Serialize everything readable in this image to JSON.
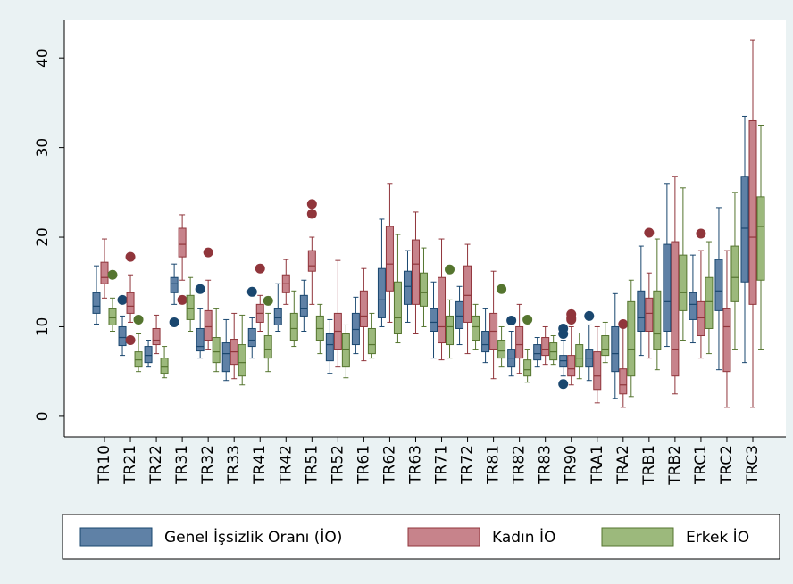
{
  "chart_data": {
    "type": "box",
    "categories": [
      "TR10",
      "TR21",
      "TR22",
      "TR31",
      "TR32",
      "TR33",
      "TR41",
      "TR42",
      "TR51",
      "TR52",
      "TR61",
      "TR62",
      "TR63",
      "TR71",
      "TR72",
      "TR81",
      "TR82",
      "TR83",
      "TR90",
      "TRA1",
      "TRA2",
      "TRB1",
      "TRB2",
      "TRC1",
      "TRC2",
      "TRC3"
    ],
    "ylim": [
      -2.3,
      44.3
    ],
    "yticks": [
      0,
      10,
      20,
      30,
      40
    ],
    "grid": false,
    "legend": "bottom",
    "series": [
      {
        "name": "Genel İşsizlik Oranı (İO)",
        "color": "#5f81a6",
        "edge": "#1a476f",
        "values": [
          [
            10.3,
            11.5,
            12.3,
            13.8,
            16.8
          ],
          [
            6.8,
            7.9,
            8.8,
            10,
            11.2
          ],
          [
            5.5,
            6,
            6.8,
            7.8,
            8.5
          ],
          [
            12.5,
            13.8,
            14.8,
            15.5,
            17
          ],
          [
            6.5,
            7.3,
            7.8,
            9.8,
            12
          ],
          [
            4,
            5,
            7,
            8.2,
            10.8
          ],
          [
            6.5,
            7.8,
            8.5,
            9.8,
            11
          ],
          [
            9.5,
            10.2,
            11,
            12,
            14.8
          ],
          [
            9.5,
            11.2,
            12,
            13.5,
            15.2
          ],
          [
            4.8,
            6.2,
            8,
            9.2,
            10.8
          ],
          [
            7,
            8,
            9.7,
            11.5,
            13.3
          ],
          [
            10,
            11,
            13,
            16.5,
            22
          ],
          [
            10.5,
            12.5,
            14.5,
            16.2,
            18.5
          ],
          [
            6.5,
            9.5,
            10.5,
            12,
            15
          ],
          [
            8,
            9.8,
            11.2,
            12.8,
            14.5
          ],
          [
            6,
            7.2,
            8,
            9.5,
            12
          ],
          [
            4.5,
            5.5,
            6.5,
            7.5,
            9.5
          ],
          [
            5.5,
            6.3,
            7,
            8,
            8.8
          ],
          [
            4.5,
            5.5,
            6.2,
            6.8,
            8.5
          ],
          [
            4,
            5.5,
            6.5,
            7.5,
            10.2
          ],
          [
            2,
            5,
            7,
            10,
            13.7
          ],
          [
            6.8,
            9.5,
            11,
            14,
            19
          ],
          [
            7.8,
            9.5,
            12.8,
            19.2,
            26
          ],
          [
            8.2,
            10.8,
            12.5,
            13.8,
            18
          ],
          [
            5.2,
            11.8,
            14,
            17.5,
            23.3
          ],
          [
            6,
            15,
            21,
            26.8,
            33.5
          ]
        ],
        "outliers": [
          [],
          [
            13
          ],
          [],
          [
            10.5
          ],
          [
            14.2
          ],
          [],
          [
            13.9
          ],
          [],
          [],
          [],
          [],
          [],
          [],
          [],
          [],
          [],
          [
            10.7
          ],
          [],
          [
            9.8,
            9.2,
            3.6
          ],
          [
            11.2
          ],
          [],
          [],
          [],
          [],
          [],
          []
        ]
      },
      {
        "name": "Kadın İO",
        "color": "#c7838b",
        "edge": "#90353b",
        "values": [
          [
            13.2,
            14.8,
            15.5,
            17.2,
            19.8
          ],
          [
            10.5,
            11.5,
            12.3,
            13.8,
            15.8
          ],
          [
            7,
            8,
            8.5,
            9.8,
            11.3
          ],
          [
            15.2,
            17.8,
            19.2,
            21,
            22.5
          ],
          [
            7.5,
            8.5,
            10,
            11.8,
            15.2
          ],
          [
            4.2,
            5.8,
            7.2,
            8.6,
            11.5
          ],
          [
            9.5,
            10.5,
            11.5,
            12.5,
            13.5
          ],
          [
            12.5,
            13.8,
            14.8,
            15.8,
            17.5
          ],
          [
            12.5,
            16.2,
            16.8,
            18.5,
            20
          ],
          [
            5.5,
            7.5,
            9.5,
            11.5,
            17.4
          ],
          [
            6.2,
            10,
            11.2,
            14,
            16.5
          ],
          [
            10.5,
            14,
            17,
            21.2,
            26
          ],
          [
            9.2,
            12.5,
            17,
            19.7,
            22.8
          ],
          [
            6.3,
            8.2,
            10,
            15.5,
            19.8
          ],
          [
            7,
            10.5,
            13.5,
            16.8,
            19.2
          ],
          [
            4.2,
            7.5,
            9.5,
            11.5,
            16.2
          ],
          [
            4.8,
            6.5,
            8,
            10,
            12.5
          ],
          [
            5.8,
            6.8,
            7.5,
            8.8,
            10
          ],
          [
            3.5,
            4.5,
            5.3,
            6.8,
            10
          ],
          [
            1.5,
            3,
            4.5,
            7.2,
            10
          ],
          [
            1,
            2.5,
            3.5,
            5.3,
            10.2
          ],
          [
            6.5,
            9.5,
            11.5,
            13.2,
            16
          ],
          [
            2.5,
            4.5,
            7.5,
            19.5,
            26.8
          ],
          [
            6.5,
            9,
            11,
            12.8,
            18.5
          ],
          [
            1,
            5,
            10,
            12,
            18.5
          ],
          [
            1,
            12.5,
            20,
            33,
            42
          ]
        ],
        "outliers": [
          [],
          [
            17.8,
            8.5
          ],
          [],
          [
            13
          ],
          [
            18.3
          ],
          [],
          [
            16.5
          ],
          [],
          [
            23.7,
            22.6
          ],
          [],
          [],
          [],
          [],
          [],
          [],
          [],
          [],
          [],
          [
            11.4,
            11,
            10.8
          ],
          [],
          [
            10.3
          ],
          [
            20.5
          ],
          [],
          [
            20.4
          ],
          [],
          []
        ]
      },
      {
        "name": "Erkek İO",
        "color": "#9cb97c",
        "edge": "#55752f",
        "values": [
          [
            9.5,
            10.2,
            11,
            12,
            13.2
          ],
          [
            5,
            5.5,
            6.3,
            7.2,
            9.2
          ],
          [
            4.3,
            4.8,
            5.5,
            6.5,
            7.8
          ],
          [
            9.5,
            10.8,
            12,
            13.5,
            15.5
          ],
          [
            5,
            6,
            7.2,
            8.8,
            12
          ],
          [
            3.5,
            4.5,
            6,
            8,
            11.3
          ],
          [
            5,
            6.5,
            7.5,
            9,
            11.5
          ],
          [
            7.8,
            8.5,
            9.8,
            11.5,
            14
          ],
          [
            7,
            8.5,
            9.8,
            11.2,
            12.5
          ],
          [
            4.3,
            5.5,
            7.5,
            9.2,
            10.2
          ],
          [
            6.5,
            7,
            8,
            9.8,
            11.5
          ],
          [
            8.2,
            9.2,
            11,
            15,
            20.3
          ],
          [
            10,
            12.3,
            13.8,
            16,
            18.8
          ],
          [
            6.5,
            8,
            10,
            11.2,
            13
          ],
          [
            7.5,
            8.5,
            10,
            11.2,
            12.5
          ],
          [
            5.5,
            6.5,
            7.3,
            8.5,
            10
          ],
          [
            3.8,
            4.5,
            5.2,
            6.3,
            7.5
          ],
          [
            5.8,
            6.3,
            7.2,
            8.2,
            9
          ],
          [
            4.2,
            5.5,
            6.5,
            8,
            9.3
          ],
          [
            6,
            6.8,
            7.5,
            9,
            10.5
          ],
          [
            2.2,
            4.5,
            7.5,
            12.8,
            15.2
          ],
          [
            5.2,
            7.5,
            9.2,
            14,
            19.8
          ],
          [
            8.5,
            11.8,
            13.8,
            18,
            25.5
          ],
          [
            7,
            9.8,
            12.8,
            15.5,
            19.5
          ],
          [
            7.5,
            12.8,
            15.5,
            19,
            25
          ],
          [
            7.5,
            15.2,
            21.2,
            24.5,
            32.5
          ]
        ],
        "outliers": [
          [
            15.8
          ],
          [
            10.8
          ],
          [],
          [],
          [],
          [],
          [
            12.9
          ],
          [],
          [],
          [],
          [],
          [],
          [],
          [
            16.4
          ],
          [],
          [
            14.2
          ],
          [
            10.8
          ],
          [],
          [],
          [],
          [],
          [],
          [],
          [],
          [],
          []
        ]
      }
    ]
  }
}
